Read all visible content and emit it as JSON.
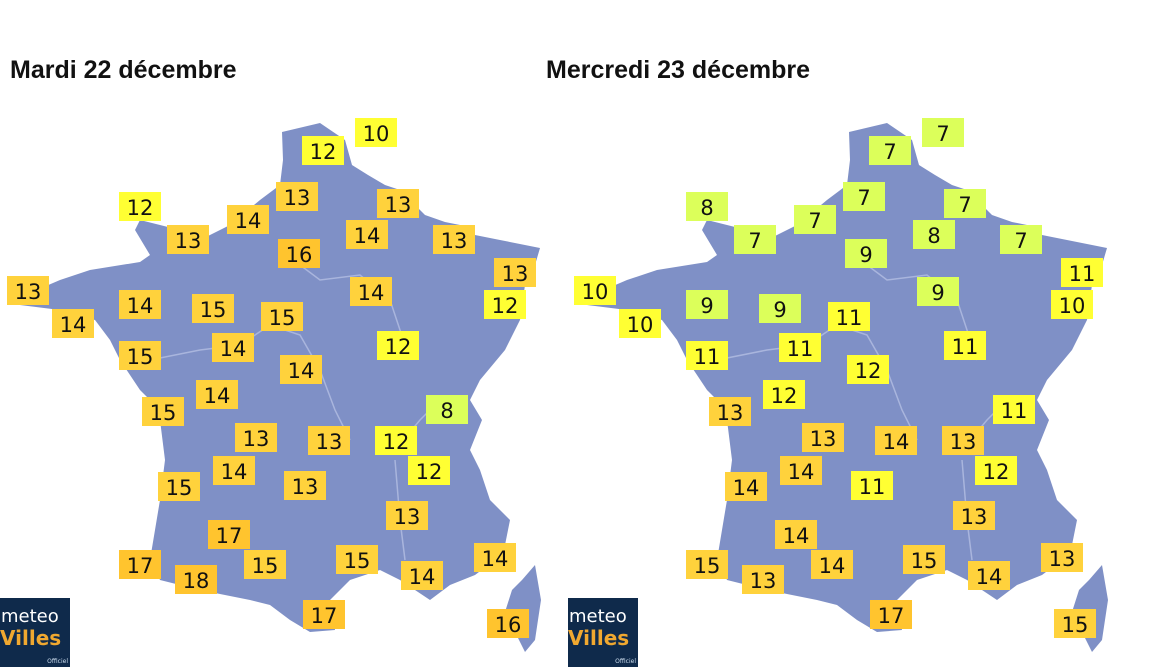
{
  "maps": [
    {
      "title": "Mardi 22 décembre",
      "values": [
        10,
        12,
        12,
        13,
        13,
        14,
        13,
        14,
        13,
        16,
        13,
        12,
        13,
        14,
        15,
        15,
        14,
        14,
        12,
        15,
        14,
        14,
        14,
        15,
        8,
        13,
        13,
        12,
        14,
        12,
        15,
        13,
        13,
        17,
        17,
        15,
        18,
        15,
        14,
        14,
        17,
        16
      ]
    },
    {
      "title": "Mercredi 23 décembre",
      "values": [
        7,
        7,
        8,
        7,
        7,
        7,
        7,
        8,
        7,
        9,
        11,
        10,
        10,
        9,
        9,
        11,
        10,
        9,
        11,
        11,
        11,
        12,
        12,
        13,
        11,
        13,
        14,
        13,
        14,
        12,
        14,
        11,
        13,
        14,
        15,
        14,
        13,
        15,
        13,
        14,
        17,
        15
      ]
    }
  ],
  "color_scale": [
    {
      "max": 9,
      "color": "#dcff5a"
    },
    {
      "max": 12,
      "color": "#ffff33"
    },
    {
      "max": 15,
      "color": "#ffd23c"
    },
    {
      "max": 99,
      "color": "#ffc42e"
    }
  ],
  "map_color": "#7f90c6",
  "logo": {
    "line1": "meteo",
    "line2": "Villes",
    "suffix": ".com",
    "tag": "Officiel"
  }
}
